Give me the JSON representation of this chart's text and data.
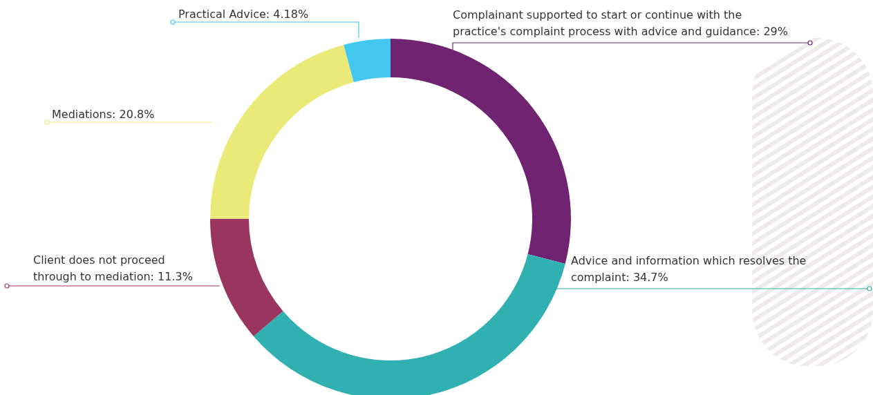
{
  "chart_data": {
    "type": "donut",
    "categories": [
      "Complainant supported to start or continue with the practice's complaint process with advice and guidance",
      "Advice and information which resolves the complaint",
      "Client does not proceed through to mediation",
      "Mediations",
      "Practical Advice"
    ],
    "values": [
      29,
      34.7,
      11.3,
      20.8,
      4.18
    ],
    "value_labels": [
      "29%",
      "34.7%",
      "11.3%",
      "20.8%",
      "4.18%"
    ],
    "colors": [
      "#6f2370",
      "#30b0b0",
      "#9a3560",
      "#eaea78",
      "#42c8f0"
    ],
    "legend": false
  }
}
